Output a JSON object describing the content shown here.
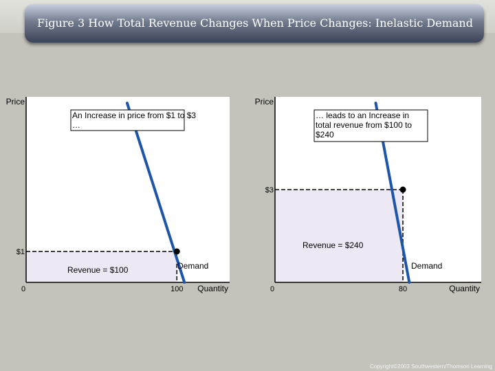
{
  "title": "Figure 3 How Total Revenue Changes When Price Changes: Inelastic Demand",
  "copyright": "Copyright©2003 Southwestern/Thomson Learning",
  "colors": {
    "background": "#c3c3bb",
    "plot_area": "#ffffff",
    "demand_line": "#1f55a8",
    "revenue_fill": "#ece8f4"
  },
  "chart_data": [
    {
      "type": "line",
      "panel": "left",
      "title": "",
      "ylabel": "Price",
      "xlabel": "Quantity",
      "grid": false,
      "series": [
        {
          "name": "Demand",
          "points": [
            {
              "x": 67,
              "y": 5.8
            },
            {
              "x": 105,
              "y": 0
            }
          ]
        }
      ],
      "point": {
        "x": 100,
        "y": 1
      },
      "x_tick_labels": [
        {
          "x": 0,
          "label": "0"
        },
        {
          "x": 100,
          "label": "100"
        }
      ],
      "y_tick_labels": [
        {
          "y": 1,
          "label": "$1"
        }
      ],
      "revenue_label": "Revenue = $100",
      "demand_label": "Demand",
      "annotation": "An Increase in price from $1 to $3 …",
      "xlim": [
        0,
        135
      ],
      "ylim": [
        0,
        6
      ]
    },
    {
      "type": "line",
      "panel": "right",
      "title": "",
      "ylabel": "Price",
      "xlabel": "Quantity",
      "grid": false,
      "series": [
        {
          "name": "Demand",
          "points": [
            {
              "x": 63,
              "y": 5.8
            },
            {
              "x": 84,
              "y": 0
            }
          ]
        }
      ],
      "point": {
        "x": 80,
        "y": 3
      },
      "x_tick_labels": [
        {
          "x": 0,
          "label": "0"
        },
        {
          "x": 80,
          "label": "80"
        }
      ],
      "y_tick_labels": [
        {
          "y": 3,
          "label": "$3"
        }
      ],
      "revenue_label": "Revenue = $240",
      "demand_label": "Demand",
      "annotation": "… leads to an Increase in total revenue from $100 to $240",
      "xlim": [
        0,
        129
      ],
      "ylim": [
        0,
        6
      ]
    }
  ]
}
